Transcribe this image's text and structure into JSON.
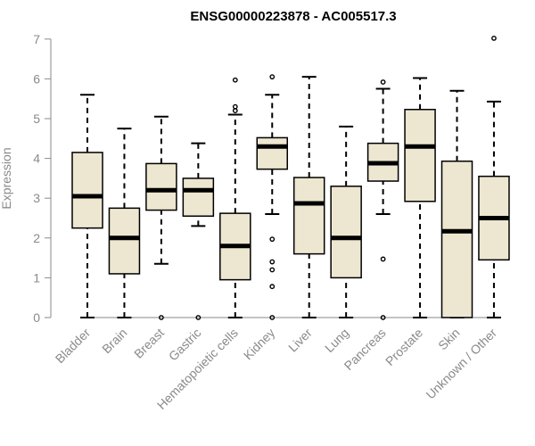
{
  "chart_data": {
    "type": "box",
    "title": "ENSG00000223878 - AC005517.3",
    "xlabel": "",
    "ylabel": "Expression",
    "ylim": [
      0,
      7
    ],
    "yticks": [
      0,
      1,
      2,
      3,
      4,
      5,
      6,
      7
    ],
    "grid": false,
    "colors": {
      "box_fill": "#ede7d1",
      "box_stroke": "#000000",
      "axis": "#8a8a8a"
    },
    "categories": [
      "Bladder",
      "Brain",
      "Breast",
      "Gastric",
      "Hematopoietic cells",
      "Kidney",
      "Liver",
      "Lung",
      "Pancreas",
      "Prostate",
      "Skin",
      "Unknown / Other"
    ],
    "boxes": [
      {
        "category": "Bladder",
        "whisker_low": 0.0,
        "q1": 2.25,
        "median": 3.05,
        "q3": 4.15,
        "whisker_high": 5.6,
        "outliers": []
      },
      {
        "category": "Brain",
        "whisker_low": 0.0,
        "q1": 1.1,
        "median": 2.0,
        "q3": 2.75,
        "whisker_high": 4.75,
        "outliers": []
      },
      {
        "category": "Breast",
        "whisker_low": 1.35,
        "q1": 2.7,
        "median": 3.2,
        "q3": 3.87,
        "whisker_high": 5.05,
        "outliers": [
          0.0
        ]
      },
      {
        "category": "Gastric",
        "whisker_low": 2.3,
        "q1": 2.55,
        "median": 3.2,
        "q3": 3.5,
        "whisker_high": 4.38,
        "outliers": [
          0.0
        ]
      },
      {
        "category": "Hematopoietic cells",
        "whisker_low": 0.0,
        "q1": 0.95,
        "median": 1.8,
        "q3": 2.62,
        "whisker_high": 5.1,
        "outliers": [
          5.2,
          5.3,
          5.97
        ]
      },
      {
        "category": "Kidney",
        "whisker_low": 2.6,
        "q1": 3.73,
        "median": 4.3,
        "q3": 4.52,
        "whisker_high": 5.6,
        "outliers": [
          0.0,
          0.78,
          1.2,
          1.4,
          1.97,
          6.05
        ]
      },
      {
        "category": "Liver",
        "whisker_low": 0.0,
        "q1": 1.6,
        "median": 2.87,
        "q3": 3.52,
        "whisker_high": 6.05,
        "outliers": []
      },
      {
        "category": "Lung",
        "whisker_low": 0.0,
        "q1": 1.0,
        "median": 2.0,
        "q3": 3.3,
        "whisker_high": 4.8,
        "outliers": []
      },
      {
        "category": "Pancreas",
        "whisker_low": 2.6,
        "q1": 3.43,
        "median": 3.88,
        "q3": 4.38,
        "whisker_high": 5.75,
        "outliers": [
          0.0,
          1.47,
          5.92
        ]
      },
      {
        "category": "Prostate",
        "whisker_low": 0.0,
        "q1": 2.92,
        "median": 4.3,
        "q3": 5.23,
        "whisker_high": 6.02,
        "outliers": []
      },
      {
        "category": "Skin",
        "whisker_low": 0.0,
        "q1": 0.0,
        "median": 2.17,
        "q3": 3.93,
        "whisker_high": 5.7,
        "outliers": []
      },
      {
        "category": "Unknown / Other",
        "whisker_low": 0.0,
        "q1": 1.45,
        "median": 2.5,
        "q3": 3.55,
        "whisker_high": 5.43,
        "outliers": [
          7.02
        ]
      }
    ]
  }
}
